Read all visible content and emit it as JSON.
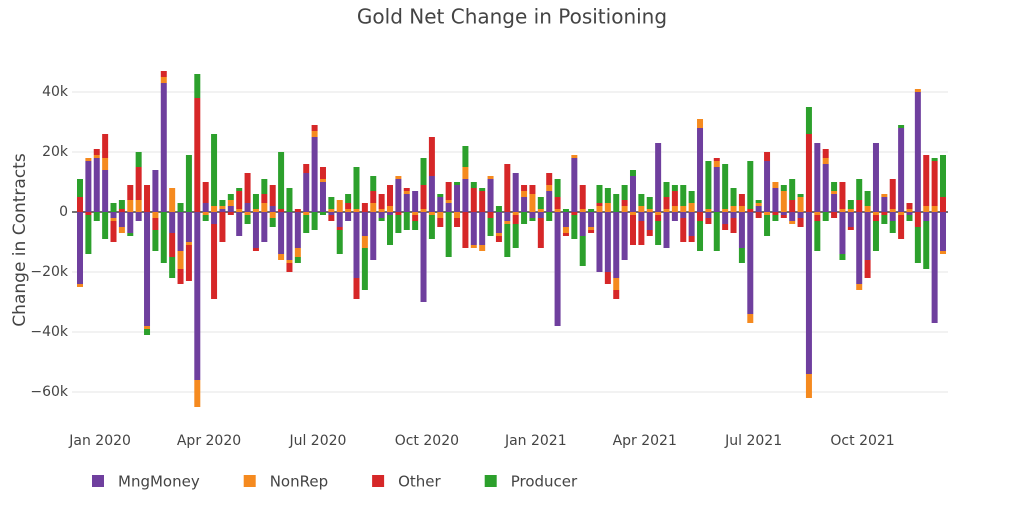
{
  "chart_data": {
    "type": "bar",
    "barmode": "relative",
    "title": "Gold Net Change in Positioning",
    "y_label": "Change in Contracts",
    "x": [
      "2019-12",
      "2019-12",
      "2019-12",
      "2020-01",
      "2020-01",
      "2020-01",
      "2020-01",
      "2020-02",
      "2020-02",
      "2020-02",
      "2020-02",
      "2020-03",
      "2020-03",
      "2020-03",
      "2020-03",
      "2020-03",
      "2020-04",
      "2020-04",
      "2020-04",
      "2020-04",
      "2020-05",
      "2020-05",
      "2020-05",
      "2020-05",
      "2020-06",
      "2020-06",
      "2020-06",
      "2020-06",
      "2020-06",
      "2020-07",
      "2020-07",
      "2020-07",
      "2020-07",
      "2020-08",
      "2020-08",
      "2020-08",
      "2020-08",
      "2020-09",
      "2020-09",
      "2020-09",
      "2020-09",
      "2020-09",
      "2020-10",
      "2020-10",
      "2020-10",
      "2020-10",
      "2020-11",
      "2020-11",
      "2020-11",
      "2020-11",
      "2020-12",
      "2020-12",
      "2020-12",
      "2020-12",
      "2020-12",
      "2021-01",
      "2021-01",
      "2021-01",
      "2021-01",
      "2021-02",
      "2021-02",
      "2021-02",
      "2021-02",
      "2021-03",
      "2021-03",
      "2021-03",
      "2021-03",
      "2021-03",
      "2021-04",
      "2021-04",
      "2021-04",
      "2021-04",
      "2021-05",
      "2021-05",
      "2021-05",
      "2021-05",
      "2021-06",
      "2021-06",
      "2021-06",
      "2021-06",
      "2021-06",
      "2021-07",
      "2021-07",
      "2021-07",
      "2021-07",
      "2021-08",
      "2021-08",
      "2021-08",
      "2021-08",
      "2021-08",
      "2021-09",
      "2021-09",
      "2021-09",
      "2021-09",
      "2021-10",
      "2021-10",
      "2021-10",
      "2021-10",
      "2021-11",
      "2021-11",
      "2021-11",
      "2021-11",
      "2021-11",
      "2021-12"
    ],
    "xticks": [
      {
        "value": "2020-01",
        "label": "Jan 2020"
      },
      {
        "value": "2020-04",
        "label": "Apr 2020"
      },
      {
        "value": "2020-07",
        "label": "Jul 2020"
      },
      {
        "value": "2020-10",
        "label": "Oct 2020"
      },
      {
        "value": "2021-01",
        "label": "Jan 2021"
      },
      {
        "value": "2021-04",
        "label": "Apr 2021"
      },
      {
        "value": "2021-07",
        "label": "Jul 2021"
      },
      {
        "value": "2021-10",
        "label": "Oct 2021"
      }
    ],
    "ylim": [
      -72000,
      51000
    ],
    "yticks": [
      {
        "value": -60000,
        "label": "−60k"
      },
      {
        "value": -40000,
        "label": "−40k"
      },
      {
        "value": -20000,
        "label": "−20k"
      },
      0,
      {
        "value": 20000,
        "label": "20k"
      },
      {
        "value": 40000,
        "label": "40k"
      }
    ],
    "grid": true,
    "legend": "bottom",
    "series": [
      {
        "name": "MngMoney",
        "color": "#6f3f9e",
        "values": [
          -24000,
          17000,
          18000,
          14000,
          -2000,
          -5000,
          -7000,
          -3000,
          -38000,
          14000,
          43000,
          -7000,
          -13000,
          -10000,
          -56000,
          3000,
          -4000,
          1000,
          2000,
          -8000,
          3000,
          -12000,
          -10000,
          2000,
          -14000,
          -16000,
          -12000,
          13000,
          25000,
          10000,
          -1000,
          -5000,
          -3000,
          -22000,
          -8000,
          -16000,
          -2000,
          -1000,
          11000,
          6000,
          7000,
          -30000,
          12000,
          5000,
          3000,
          9000,
          11000,
          -11000,
          -11000,
          11000,
          -7000,
          -3000,
          13000,
          5000,
          -2000,
          -2000,
          7000,
          -38000,
          -5000,
          18000,
          -8000,
          -5000,
          -20000,
          -20000,
          -22000,
          -16000,
          12000,
          -3000,
          -6000,
          23000,
          -12000,
          -3000,
          -2000,
          -8000,
          28000,
          -2000,
          15000,
          -4000,
          -2000,
          -12000,
          -34000,
          2000,
          17000,
          8000,
          -1000,
          -3000,
          -2000,
          -54000,
          23000,
          16000,
          6000,
          -14000,
          -5000,
          -24000,
          -16000,
          23000,
          5000,
          -3000,
          28000,
          -1000,
          40000,
          -3000,
          -37000,
          -13000
        ]
      },
      {
        "name": "NonRep",
        "color": "#f58a1f",
        "values": [
          -1000,
          1000,
          1000,
          4000,
          -1000,
          -2000,
          4000,
          4000,
          -1000,
          -2000,
          2000,
          8000,
          -6000,
          -1000,
          -9000,
          -1000,
          2000,
          1000,
          2000,
          1000,
          -1000,
          1000,
          3000,
          -2000,
          -2000,
          -1000,
          -3000,
          -1000,
          2000,
          1000,
          1000,
          4000,
          1000,
          1000,
          -4000,
          3000,
          1000,
          2000,
          1000,
          1000,
          -1000,
          1000,
          -1000,
          -2000,
          1000,
          -2000,
          4000,
          -1000,
          -2000,
          1000,
          -1000,
          -1000,
          -1000,
          2000,
          6000,
          1000,
          2000,
          1000,
          -2000,
          1000,
          1000,
          -1000,
          2000,
          3000,
          -4000,
          2000,
          -1000,
          2000,
          1000,
          -1000,
          1000,
          2000,
          2000,
          3000,
          3000,
          1000,
          2000,
          1000,
          2000,
          2000,
          -3000,
          1000,
          -1000,
          2000,
          7000,
          -1000,
          5000,
          -8000,
          -1000,
          2000,
          1000,
          1000,
          1000,
          -2000,
          2000,
          -1000,
          1000,
          1000,
          -1000,
          1000,
          1000,
          2000,
          2000,
          -1000
        ]
      },
      {
        "name": "Other",
        "color": "#d62728",
        "values": [
          5000,
          -1000,
          2000,
          8000,
          -7000,
          1000,
          5000,
          11000,
          9000,
          -4000,
          2000,
          -8000,
          -5000,
          -12000,
          38000,
          7000,
          -25000,
          -10000,
          -1000,
          6000,
          10000,
          -1000,
          3000,
          7000,
          1000,
          -3000,
          1000,
          3000,
          2000,
          4000,
          -2000,
          -1000,
          2000,
          -7000,
          3000,
          4000,
          5000,
          7000,
          -1000,
          1000,
          -2000,
          8000,
          13000,
          -3000,
          6000,
          -3000,
          -12000,
          8000,
          7000,
          -2000,
          -2000,
          16000,
          -3000,
          2000,
          3000,
          -10000,
          4000,
          4000,
          -1000,
          -1000,
          8000,
          -1000,
          1000,
          -4000,
          -3000,
          2000,
          -10000,
          -8000,
          -2000,
          -2000,
          4000,
          5000,
          -8000,
          -2000,
          -3000,
          -2000,
          1000,
          -2000,
          -5000,
          4000,
          1000,
          -2000,
          3000,
          -1000,
          -1000,
          4000,
          -3000,
          26000,
          -2000,
          3000,
          -2000,
          9000,
          -1000,
          4000,
          -6000,
          -2000,
          -1000,
          10000,
          -8000,
          2000,
          -5000,
          17000,
          15000,
          5000
        ]
      },
      {
        "name": "Producer",
        "color": "#2ca02c",
        "values": [
          6000,
          -13000,
          -3000,
          -9000,
          3000,
          3000,
          -1000,
          5000,
          -2000,
          -7000,
          -17000,
          -7000,
          3000,
          19000,
          8000,
          -2000,
          24000,
          2000,
          2000,
          1000,
          -3000,
          5000,
          5000,
          -3000,
          19000,
          8000,
          -2000,
          -6000,
          -6000,
          -1000,
          4000,
          -8000,
          3000,
          14000,
          -14000,
          5000,
          -1000,
          -10000,
          -6000,
          -6000,
          -3000,
          9000,
          -8000,
          1000,
          -15000,
          1000,
          7000,
          2000,
          1000,
          -6000,
          2000,
          -11000,
          -8000,
          -4000,
          -1000,
          4000,
          -3000,
          6000,
          1000,
          -8000,
          -10000,
          1000,
          6000,
          5000,
          6000,
          5000,
          2000,
          4000,
          4000,
          -8000,
          5000,
          2000,
          7000,
          4000,
          -10000,
          16000,
          -13000,
          15000,
          6000,
          -5000,
          16000,
          1000,
          -7000,
          -2000,
          2000,
          7000,
          1000,
          9000,
          -10000,
          -3000,
          3000,
          -2000,
          3000,
          7000,
          5000,
          -10000,
          -3000,
          -4000,
          1000,
          -2000,
          -12000,
          -16000,
          1000,
          14000
        ]
      }
    ]
  }
}
